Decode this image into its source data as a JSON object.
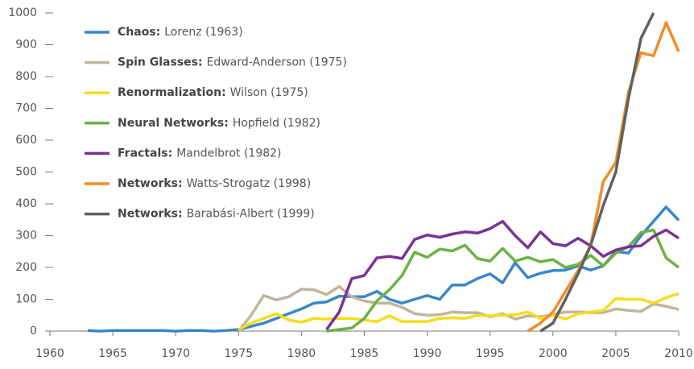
{
  "chart_data": {
    "type": "line",
    "xlim": [
      1960,
      2010
    ],
    "xticks": [
      1960,
      1965,
      1970,
      1975,
      1980,
      1985,
      1990,
      1995,
      2000,
      2005,
      2010
    ],
    "ylim": [
      0,
      1000
    ],
    "yticks": [
      0,
      100,
      200,
      300,
      400,
      500,
      600,
      700,
      800,
      900,
      1000
    ],
    "legend": "upper left",
    "series": [
      {
        "name": "Chaos:",
        "detail": "Lorenz (1963)",
        "color": "#3a87c8",
        "x": [
          1963,
          1964,
          1965,
          1966,
          1967,
          1968,
          1969,
          1970,
          1971,
          1972,
          1973,
          1974,
          1975,
          1976,
          1977,
          1978,
          1979,
          1980,
          1981,
          1982,
          1983,
          1984,
          1985,
          1986,
          1987,
          1988,
          1989,
          1990,
          1991,
          1992,
          1993,
          1994,
          1995,
          1996,
          1997,
          1998,
          1999,
          2000,
          2001,
          2002,
          2003,
          2004,
          2005,
          2006,
          2007,
          2008,
          2009,
          2010
        ],
        "values": [
          2,
          0,
          2,
          2,
          2,
          2,
          2,
          0,
          2,
          2,
          0,
          2,
          5,
          15,
          25,
          40,
          55,
          70,
          88,
          92,
          110,
          108,
          108,
          125,
          100,
          88,
          100,
          112,
          100,
          145,
          145,
          165,
          180,
          152,
          215,
          168,
          182,
          190,
          192,
          205,
          192,
          205,
          250,
          245,
          300,
          345,
          390,
          348
        ]
      },
      {
        "name": "Spin Glasses:",
        "detail": "Edward-Anderson (1975)",
        "color": "#c3b49a",
        "x": [
          1975,
          1976,
          1977,
          1978,
          1979,
          1980,
          1981,
          1982,
          1983,
          1984,
          1985,
          1986,
          1987,
          1988,
          1989,
          1990,
          1991,
          1992,
          1993,
          1994,
          1995,
          1996,
          1997,
          1998,
          1999,
          2000,
          2001,
          2002,
          2003,
          2004,
          2005,
          2006,
          2007,
          2008,
          2009,
          2010
        ],
        "values": [
          0,
          50,
          112,
          98,
          108,
          132,
          130,
          115,
          140,
          108,
          95,
          88,
          88,
          75,
          55,
          50,
          52,
          60,
          58,
          58,
          45,
          55,
          38,
          48,
          45,
          52,
          60,
          60,
          58,
          58,
          70,
          65,
          62,
          85,
          78,
          68
        ]
      },
      {
        "name": "Renormalization:",
        "detail": "Wilson (1975)",
        "color": "#f5dc1e",
        "x": [
          1975,
          1976,
          1977,
          1978,
          1979,
          1980,
          1981,
          1982,
          1983,
          1984,
          1985,
          1986,
          1987,
          1988,
          1989,
          1990,
          1991,
          1992,
          1993,
          1994,
          1995,
          1996,
          1997,
          1998,
          1999,
          2000,
          2001,
          2002,
          2003,
          2004,
          2005,
          2006,
          2007,
          2008,
          2009,
          2010
        ],
        "values": [
          5,
          25,
          40,
          55,
          35,
          28,
          40,
          38,
          40,
          40,
          35,
          30,
          48,
          30,
          30,
          30,
          40,
          42,
          40,
          50,
          48,
          50,
          52,
          60,
          40,
          50,
          38,
          55,
          60,
          65,
          102,
          100,
          100,
          88,
          105,
          118
        ]
      },
      {
        "name": "Neural Networks:",
        "detail": "Hopfield (1982)",
        "color": "#6ab344",
        "x": [
          1982,
          1983,
          1984,
          1985,
          1986,
          1987,
          1988,
          1989,
          1990,
          1991,
          1992,
          1993,
          1994,
          1995,
          1996,
          1997,
          1998,
          1999,
          2000,
          2001,
          2002,
          2003,
          2004,
          2005,
          2006,
          2007,
          2008,
          2009,
          2010
        ],
        "values": [
          0,
          5,
          10,
          40,
          95,
          130,
          175,
          248,
          232,
          258,
          252,
          270,
          228,
          220,
          260,
          220,
          232,
          218,
          225,
          200,
          210,
          238,
          205,
          245,
          265,
          310,
          318,
          230,
          200
        ]
      },
      {
        "name": "Fractals:",
        "detail": "Mandelbrot (1982)",
        "color": "#7b3294",
        "x": [
          1982,
          1983,
          1984,
          1985,
          1986,
          1987,
          1988,
          1989,
          1990,
          1991,
          1992,
          1993,
          1994,
          1995,
          1996,
          1997,
          1998,
          1999,
          2000,
          2001,
          2002,
          2003,
          2004,
          2005,
          2006,
          2007,
          2008,
          2009,
          2010
        ],
        "values": [
          5,
          60,
          165,
          175,
          230,
          235,
          228,
          288,
          302,
          295,
          305,
          312,
          308,
          322,
          345,
          300,
          262,
          312,
          275,
          268,
          292,
          268,
          235,
          255,
          265,
          268,
          298,
          318,
          292
        ]
      },
      {
        "name": "Networks:",
        "detail": "Watts-Strogatz (1998)",
        "color": "#f28c28",
        "x": [
          1998,
          1999,
          2000,
          2001,
          2002,
          2003,
          2004,
          2005,
          2006,
          2007,
          2008,
          2009,
          2010
        ],
        "values": [
          0,
          25,
          60,
          125,
          190,
          270,
          470,
          530,
          750,
          875,
          865,
          970,
          878
        ]
      },
      {
        "name": "Networks:",
        "detail": "Barabási-Albert (1999)",
        "color": "#606060",
        "x": [
          1999,
          2000,
          2001,
          2002,
          2003,
          2004,
          2005,
          2006,
          2007,
          2008
        ],
        "values": [
          0,
          25,
          100,
          180,
          270,
          395,
          500,
          730,
          920,
          1000
        ]
      }
    ]
  }
}
